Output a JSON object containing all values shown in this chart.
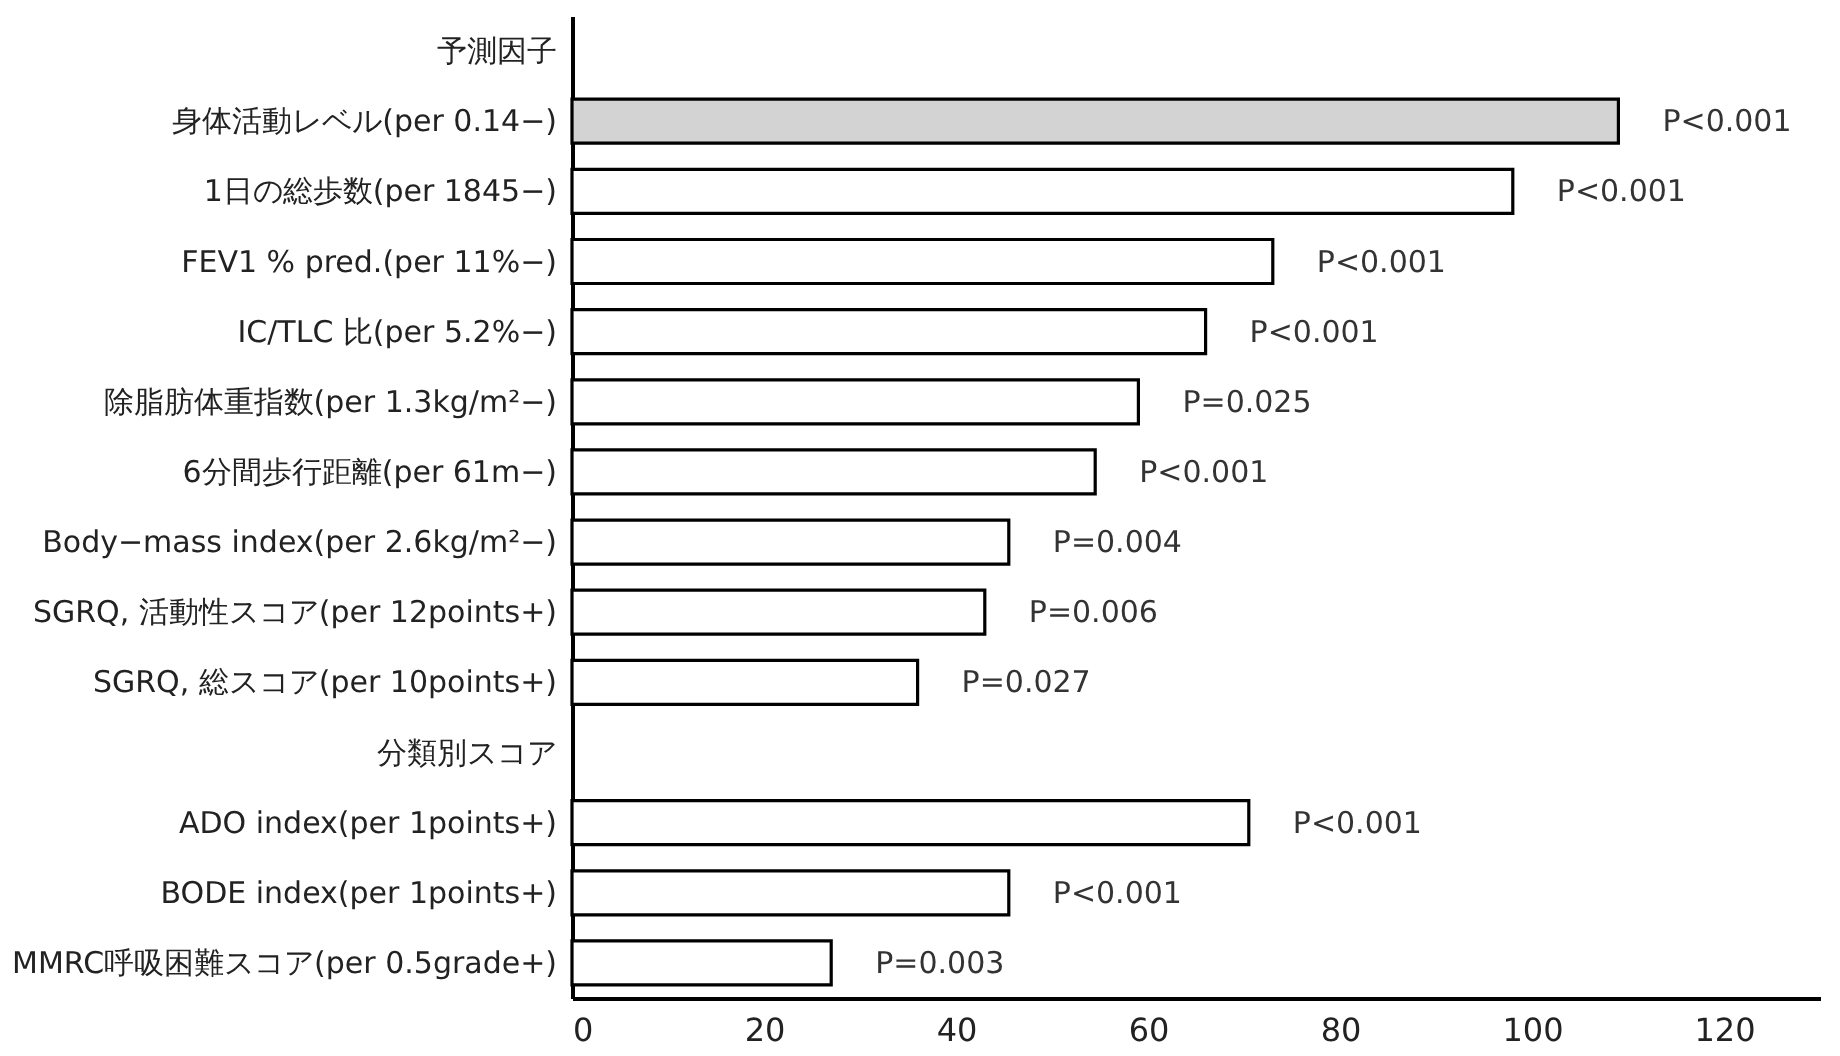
{
  "chart_data": {
    "type": "bar",
    "orientation": "horizontal",
    "categories": [
      "予測因子",
      "身体活動レベル(per 0.14−)",
      "1日の総歩数(per 1845−)",
      "FEV1 % pred.(per 11%−)",
      "IC/TLC 比(per 5.2%−)",
      "除脂肪体重指数(per 1.3kg/m²−)",
      "6分間歩行距離(per 61m−)",
      "Body−mass index(per 2.6kg/m²−)",
      "SGRQ, 活動性スコア(per 12points+)",
      "SGRQ, 総スコア(per 10points+)",
      "分類別スコア",
      "ADO index(per 1points+)",
      "BODE index(per 1points+)",
      "MMRC呼吸困難スコア(per 0.5grade+)"
    ],
    "values": [
      null,
      109,
      98,
      73,
      66,
      59,
      54.5,
      45.5,
      43,
      36,
      null,
      70.5,
      45.5,
      27
    ],
    "colors": [
      null,
      "#d3d3d3",
      "#ffffff",
      "#ffffff",
      "#ffffff",
      "#ffffff",
      "#ffffff",
      "#ffffff",
      "#ffffff",
      "#ffffff",
      null,
      "#ffffff",
      "#ffffff",
      "#ffffff"
    ],
    "annotations": [
      {
        "text": "P<0.001",
        "x": 109,
        "y": "身体活動レベル(per 0.14−)"
      },
      {
        "text": "P<0.001",
        "x": 98,
        "y": "1日の総歩数(per 1845−)"
      },
      {
        "text": "P<0.001",
        "x": 73,
        "y": "FEV1 % pred.(per 11%−)"
      },
      {
        "text": "P<0.001",
        "x": 66,
        "y": "IC/TLC 比(per 5.2%−)"
      },
      {
        "text": "P=0.025",
        "x": 59,
        "y": "除脂肪体重指数(per 1.3kg/m²−)"
      },
      {
        "text": "P<0.001",
        "x": 54.5,
        "y": "6分間歩行距離(per 61m−)"
      },
      {
        "text": "P=0.004",
        "x": 45.5,
        "y": "Body−mass index(per 2.6kg/m²−)"
      },
      {
        "text": "P=0.006",
        "x": 43,
        "y": "SGRQ, 活動性スコア(per 12points+)"
      },
      {
        "text": "P=0.027",
        "x": 36,
        "y": "SGRQ, 総スコア(per 10points+)"
      },
      {
        "text": "P<0.001",
        "x": 70.5,
        "y": "ADO index(per 1points+)"
      },
      {
        "text": "P<0.001",
        "x": 45.5,
        "y": "BODE index(per 1points+)"
      },
      {
        "text": "P=0.003",
        "x": 27,
        "y": "MMRC呼吸困難スコア(per 0.5grade+)"
      }
    ],
    "xlim": [
      0,
      130
    ],
    "xticks": [
      0,
      20,
      40,
      60,
      80,
      100,
      120
    ],
    "grid": false
  }
}
